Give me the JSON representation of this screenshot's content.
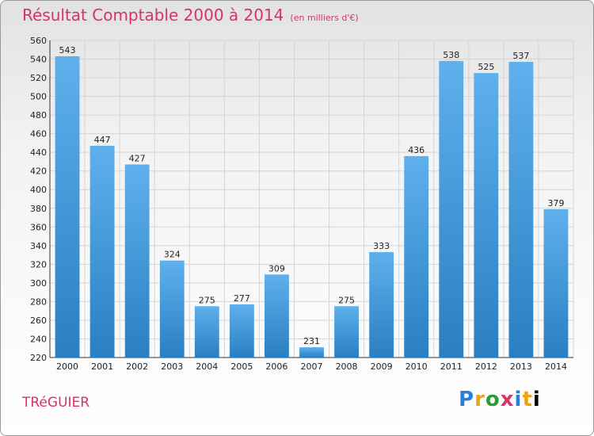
{
  "title": "Résultat Comptable 2000 à 2014",
  "subtitle": "(en milliers d'€)",
  "city": "TRéGUIER",
  "logo": [
    "P",
    "r",
    "o",
    "x",
    "i",
    "t",
    "i"
  ],
  "colors": {
    "title": "#d6336c",
    "bar_light": "#5fb0ec",
    "bar_dark": "#2a7fc2"
  },
  "chart_data": {
    "type": "bar",
    "categories": [
      "2000",
      "2001",
      "2002",
      "2003",
      "2004",
      "2005",
      "2006",
      "2007",
      "2008",
      "2009",
      "2010",
      "2011",
      "2012",
      "2013",
      "2014"
    ],
    "values": [
      543,
      447,
      427,
      324,
      275,
      277,
      309,
      231,
      275,
      333,
      436,
      538,
      525,
      537,
      379
    ],
    "title": "Résultat Comptable 2000 à 2014",
    "xlabel": "",
    "ylabel": "",
    "ylim": [
      220,
      560
    ],
    "yticks": [
      220,
      240,
      260,
      280,
      300,
      320,
      340,
      360,
      380,
      400,
      420,
      440,
      460,
      480,
      500,
      520,
      540,
      560
    ],
    "grid": true,
    "legend": "none"
  }
}
